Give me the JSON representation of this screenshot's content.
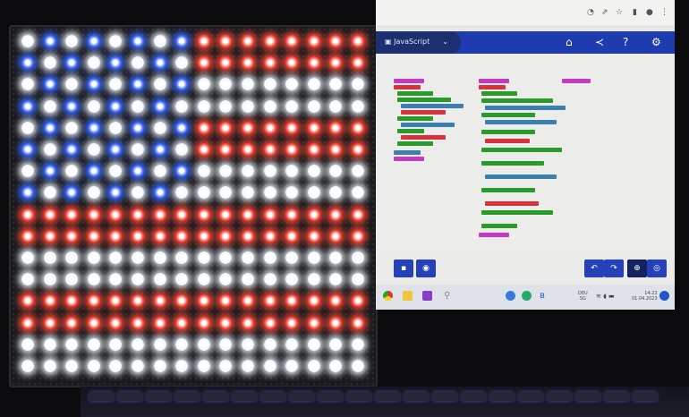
{
  "led_matrix": {
    "colors": {
      "R": "#ff4a3a",
      "W": "#f2f8ff",
      "B": "#3a6aff"
    },
    "rows": [
      "WBWBWBWBRRRRRRRR",
      "BWBWBWBWRRRRRRRR",
      "WBWBWBWBWWWWWWWW",
      "BWBWBWBWWWWWWWWW",
      "WBWBWBWBRRRRRRRR",
      "BWBWBWBWRRRRRRRR",
      "WBWBWBWBWWWWWWWW",
      "BWBWBWBWWWWWWWWW",
      "RRRRRRRRRRRRRRRR",
      "RRRRRRRRRRRRRRRR",
      "WWWWWWWWWWWWWWWW",
      "WWWWWWWWWWWWWWWW",
      "RRRRRRRRRRRRRRRR",
      "RRRRRRRRRRRRRRRR",
      "WWWWWWWWWWWWWWWW",
      "WWWWWWWWWWWWWWWW"
    ]
  },
  "editor": {
    "language": "JavaScript",
    "accent": "#1f3bb0"
  },
  "taskbar": {
    "keyboard_lang": "DEU",
    "keyboard_sub": "SG",
    "time": "14:22",
    "date": "01.04.2023"
  }
}
